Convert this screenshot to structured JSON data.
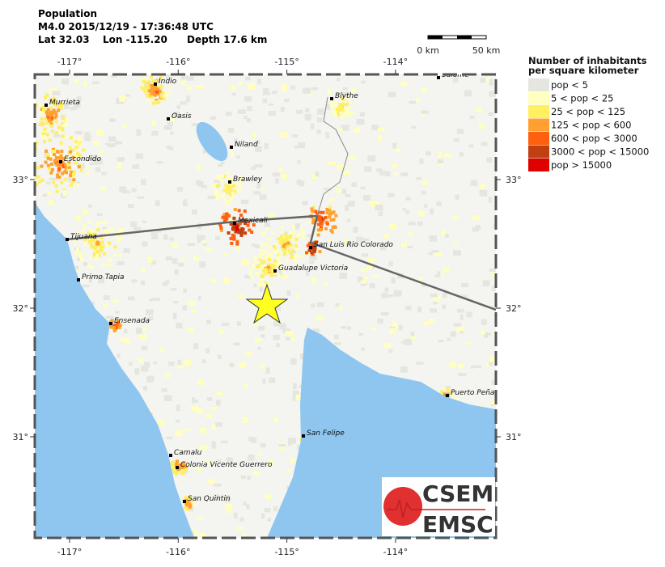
{
  "header": {
    "title": "Population",
    "line1": "M4.0  2015/12/19 - 17:36:48 UTC",
    "lat": "Lat 32.03",
    "lon": "Lon -115.20",
    "depth": "Depth  17.6 km"
  },
  "scale_bar": {
    "start": "0 km",
    "end": "50 km"
  },
  "axes": {
    "lon_ticks": [
      {
        "value": -117,
        "label": "-117°"
      },
      {
        "value": -116,
        "label": "-116°"
      },
      {
        "value": -115,
        "label": "-115°"
      },
      {
        "value": -114,
        "label": "-114°"
      }
    ],
    "lat_ticks": [
      {
        "value": 33,
        "label": "33°"
      },
      {
        "value": 32,
        "label": "32°"
      },
      {
        "value": 31,
        "label": "31°"
      }
    ]
  },
  "legend": {
    "title": [
      "Number of inhabitants",
      "per square kilometer"
    ],
    "items": [
      {
        "label": "pop < 5",
        "color": "#e6e6e0"
      },
      {
        "label": "5 < pop < 25",
        "color": "#ffffc0"
      },
      {
        "label": "25 < pop < 125",
        "color": "#fff060"
      },
      {
        "label": "125 < pop < 600",
        "color": "#ffa030"
      },
      {
        "label": "600 < pop < 3000",
        "color": "#ff6010"
      },
      {
        "label": "3000 < pop < 15000",
        "color": "#c04010"
      },
      {
        "label": "pop > 15000",
        "color": "#e00000"
      }
    ]
  },
  "cities": [
    "Indio",
    "Salome",
    "Murrieta",
    "Blythe",
    "Oasis",
    "Niland",
    "Escondido",
    "Brawley",
    "Mexicali",
    "Tijuana",
    "San Luis Rio Colorado",
    "Guadalupe Victoria",
    "Primo Tapia",
    "Ensenada",
    "Puerto Peñasco",
    "San Felipe",
    "Camalu",
    "Colonia Vicente Guerrero",
    "San Quintin"
  ],
  "logo": {
    "top": "CSEM",
    "bottom": "EMSC"
  }
}
